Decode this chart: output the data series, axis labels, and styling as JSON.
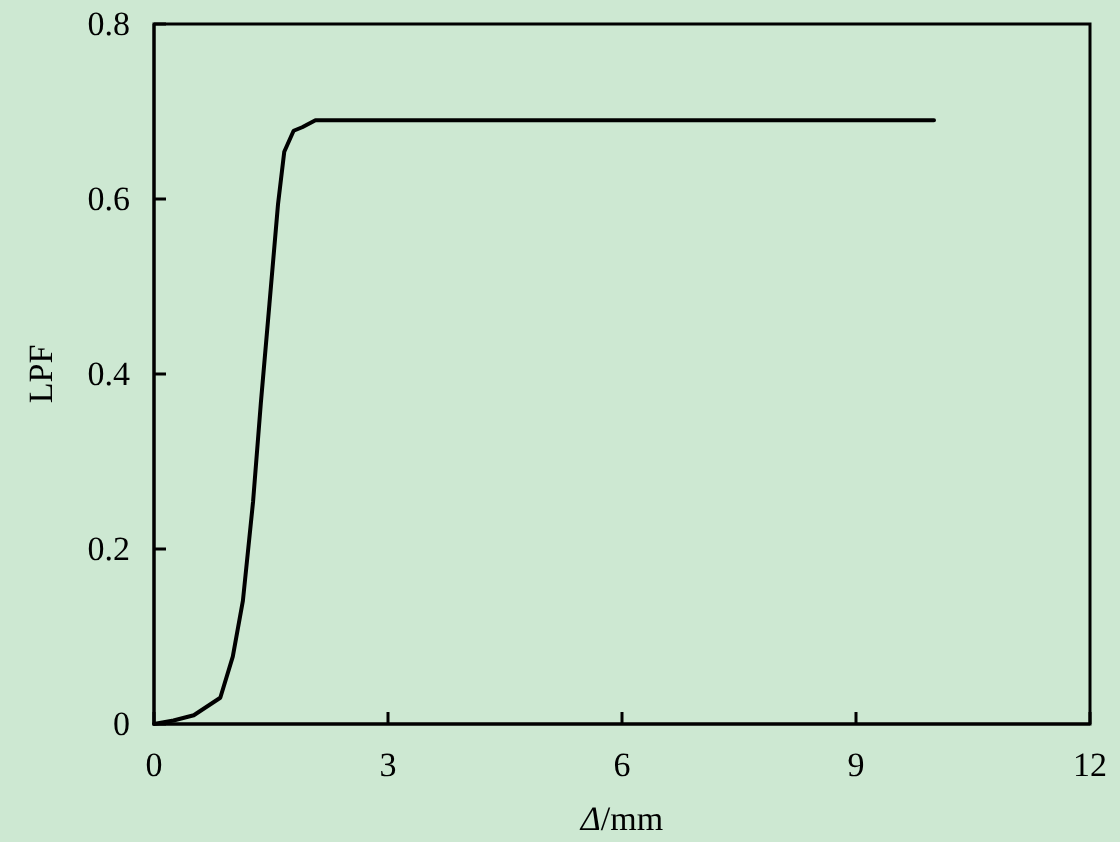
{
  "chart_data": {
    "type": "line",
    "xlabel": "Δ/mm",
    "ylabel": "LPF",
    "xlim": [
      0,
      12
    ],
    "xticks": [
      0,
      3,
      6,
      9,
      12
    ],
    "ylim": [
      0,
      0.8
    ],
    "yticks": [
      0,
      0.2,
      0.4,
      0.6,
      0.8
    ],
    "marker": "none",
    "line_style": "solid",
    "series": [
      {
        "color": "#000000",
        "x": [
          0,
          0.25,
          0.51,
          0.85,
          1.01,
          1.14,
          1.27,
          1.37,
          1.48,
          1.59,
          1.67,
          1.79,
          1.9,
          2.07,
          4,
          6,
          8,
          10
        ],
        "values": [
          0,
          0.004,
          0.01,
          0.03,
          0.077,
          0.141,
          0.254,
          0.367,
          0.48,
          0.594,
          0.654,
          0.678,
          0.682,
          0.69,
          0.69,
          0.69,
          0.69,
          0.69
        ]
      }
    ]
  }
}
